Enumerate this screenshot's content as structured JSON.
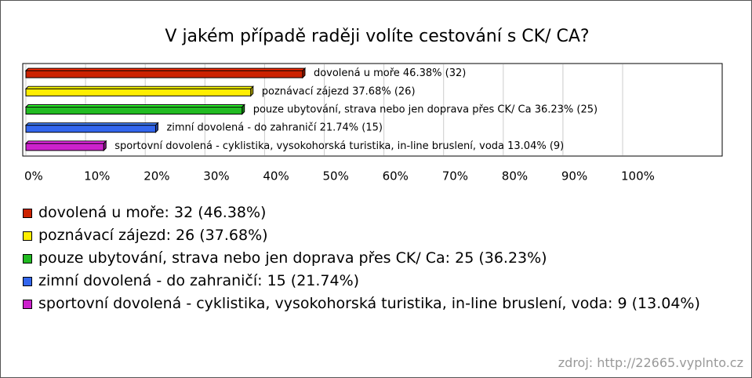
{
  "chart_data": {
    "type": "hbar",
    "title": "V jakém případě raději volíte cestování s CK/ CA?",
    "categories": [
      "dovolená u moře",
      "poznávací zájezd",
      "pouze ubytování, strava nebo jen doprava přes CK/ Ca",
      "zimní dovolená - do zahraničí",
      "sportovní dovolená - cyklistika, vysokohorská turistika, in-line bruslení, voda"
    ],
    "values": [
      46.38,
      37.68,
      36.23,
      21.74,
      13.04
    ],
    "value_labels": [
      "dovolená u moře 46.38% (32)",
      "poznávací zájezd 37.68% (26)",
      "pouze ubytování, strava nebo jen doprava přes CK/ Ca 36.23% (25)",
      "zimní dovolená - do zahraničí 21.74% (15)",
      "sportovní dovolená - cyklistika, vysokohorská turistika, in-line bruslení, voda 13.04% (9)"
    ],
    "legend_labels": [
      "dovolená u moře: 32 (46.38%)",
      "poznávací zájezd: 26 (37.68%)",
      "pouze ubytování, strava nebo jen doprava přes CK/ Ca: 25 (36.23%)",
      "zimní dovolená - do zahraničí: 15 (21.74%)",
      "sportovní dovolená - cyklistika, vysokohorská turistika, in-line bruslení, voda: 9 (13.04%)"
    ],
    "colors": [
      "#cc2200",
      "#ffee00",
      "#22bb22",
      "#3366ee",
      "#cc22cc"
    ],
    "xlim": [
      0,
      100
    ],
    "xticks": [
      {
        "value": 0,
        "label": "0%"
      },
      {
        "value": 10,
        "label": "10%"
      },
      {
        "value": 20,
        "label": "20%"
      },
      {
        "value": 30,
        "label": "30%"
      },
      {
        "value": 40,
        "label": "40%"
      },
      {
        "value": 50,
        "label": "50%"
      },
      {
        "value": 60,
        "label": "60%"
      },
      {
        "value": 70,
        "label": "70%"
      },
      {
        "value": 80,
        "label": "80%"
      },
      {
        "value": 90,
        "label": "90%"
      },
      {
        "value": 100,
        "label": "100%"
      }
    ],
    "grid": true,
    "source": "zdroj: http://22665.vyplnto.cz"
  }
}
